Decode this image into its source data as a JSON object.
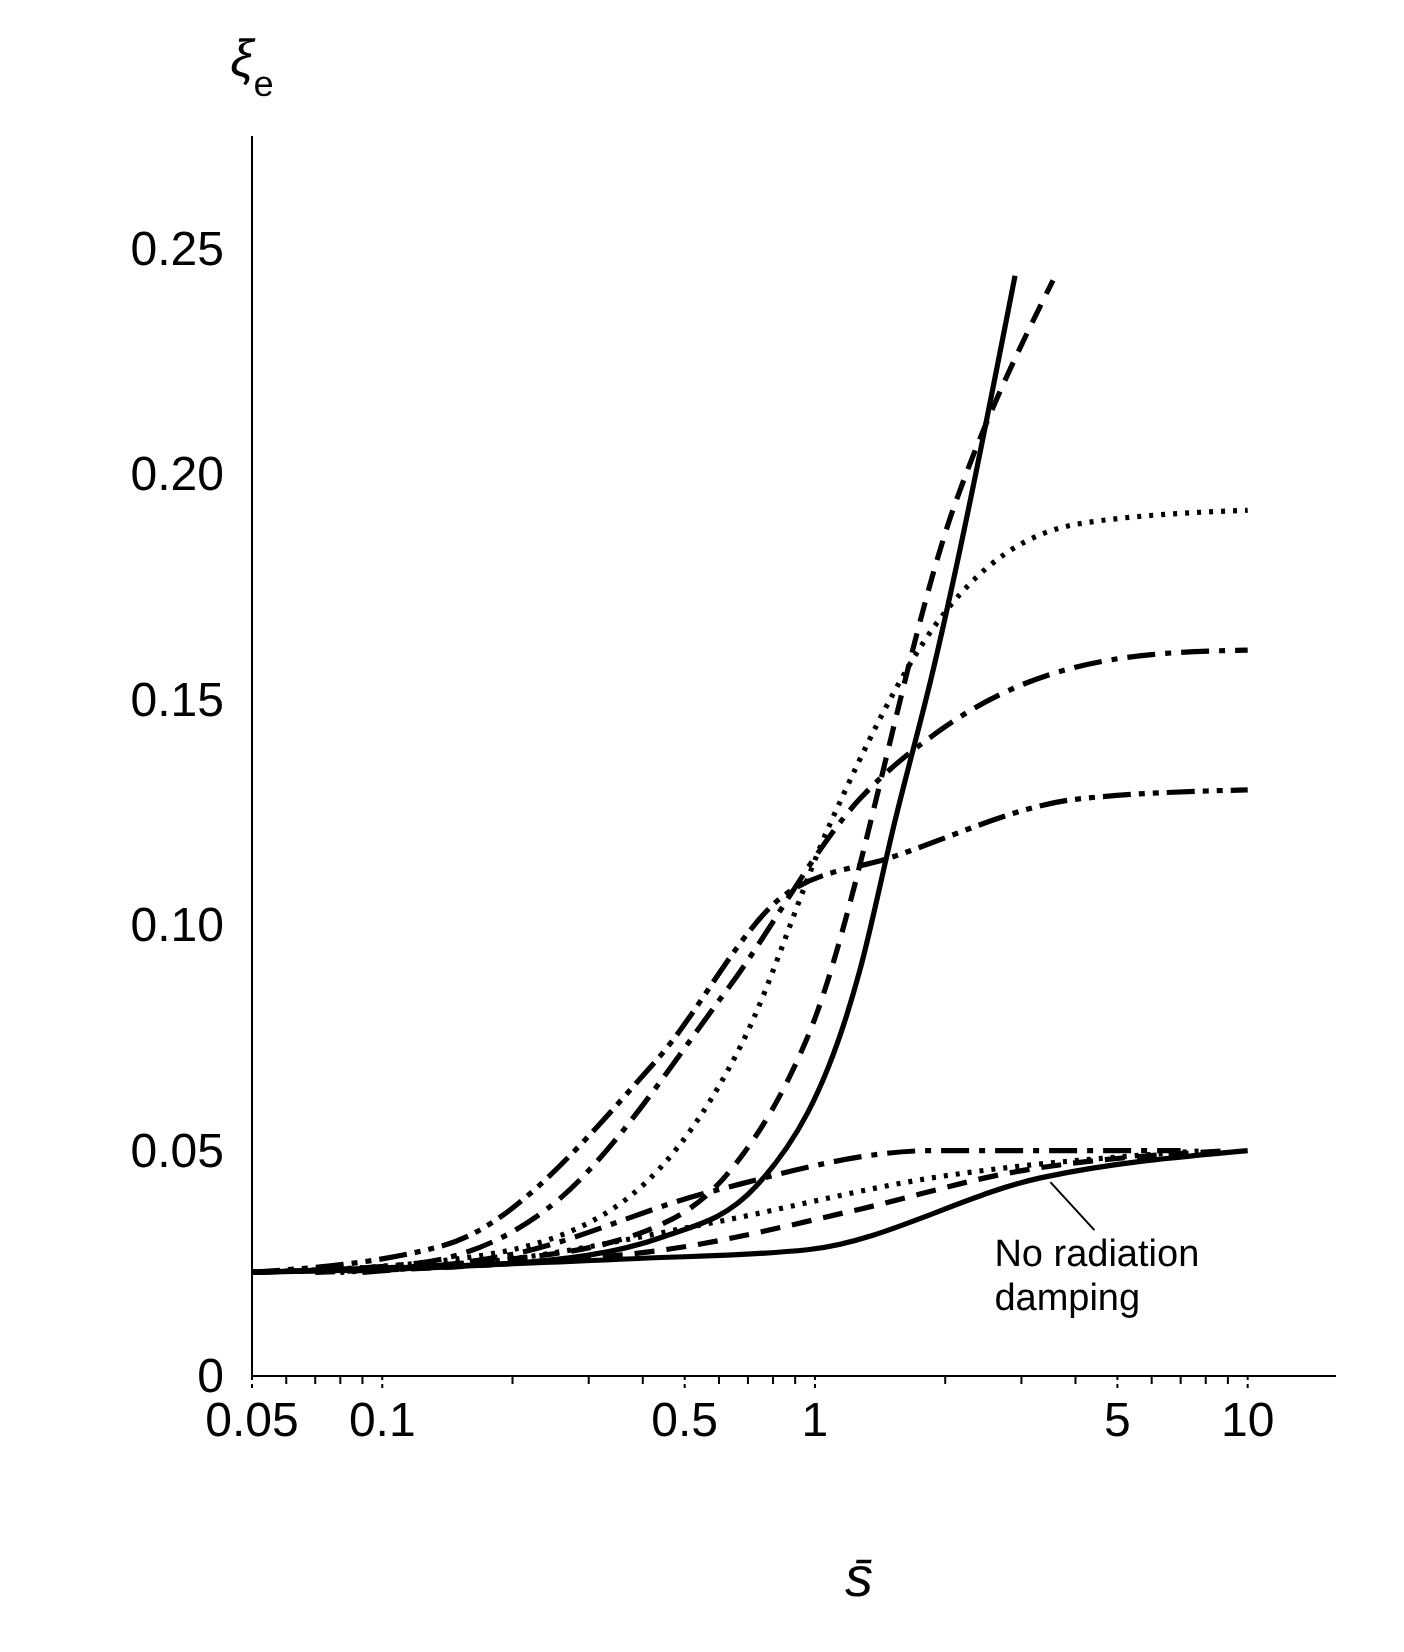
{
  "chart_data": {
    "type": "line",
    "xlabel": "s̄",
    "ylabel": "ξ$_{e}$",
    "log": "x",
    "marker": "none",
    "xlim": [
      0.05,
      16
    ],
    "ylim": [
      0,
      0.275
    ],
    "xticks": [
      0.05,
      {
        "value": 0.06,
        "label": null
      },
      {
        "value": 0.07,
        "label": null
      },
      {
        "value": 0.08,
        "label": null
      },
      {
        "value": 0.09,
        "label": null
      },
      0.1,
      {
        "value": 0.2,
        "label": null
      },
      {
        "value": 0.3,
        "label": null
      },
      {
        "value": 0.4,
        "label": null
      },
      0.5,
      {
        "value": 0.6,
        "label": null
      },
      {
        "value": 0.7,
        "label": null
      },
      {
        "value": 0.8,
        "label": null
      },
      {
        "value": 0.9,
        "label": null
      },
      1,
      {
        "value": 2,
        "label": null
      },
      {
        "value": 3,
        "label": null
      },
      {
        "value": 4,
        "label": null
      },
      5,
      {
        "value": 6,
        "label": null
      },
      {
        "value": 7,
        "label": null
      },
      {
        "value": 8,
        "label": null
      },
      {
        "value": 9,
        "label": null
      },
      10
    ],
    "yticks": [
      0,
      0.05,
      {
        "value": 0.1,
        "label": "0.10"
      },
      0.15,
      {
        "value": 0.2,
        "label": "0.20"
      },
      0.25
    ],
    "series": [
      {
        "color": "#000000",
        "line_style": "solid",
        "x": [
          0.05,
          0.2,
          0.45,
          0.73,
          1.27,
          1.53,
          1.88,
          2.9
        ],
        "values": [
          0.023,
          0.025,
          0.031,
          0.042,
          0.09,
          0.123,
          0.157,
          0.244
        ]
      },
      {
        "color": "#000000",
        "line_style": "dashed",
        "x": [
          0.05,
          0.2,
          0.45,
          0.63,
          0.96,
          2.1,
          3.55
        ],
        "values": [
          0.023,
          0.026,
          0.034,
          0.045,
          0.075,
          0.193,
          0.243
        ]
      },
      {
        "color": "#000000",
        "line_style": "dotted",
        "x": [
          0.05,
          0.15,
          0.34,
          0.68,
          1.09,
          1.88,
          4.08,
          10
        ],
        "values": [
          0.023,
          0.026,
          0.037,
          0.074,
          0.123,
          0.166,
          0.189,
          0.192
        ]
      },
      {
        "color": "#000000",
        "line_style": "dashdot",
        "x": [
          0.05,
          0.12,
          0.24,
          0.63,
          1.27,
          2.0,
          6.0,
          10
        ],
        "values": [
          0.023,
          0.025,
          0.037,
          0.086,
          0.128,
          0.144,
          0.16,
          0.161
        ]
      },
      {
        "color": "#000000",
        "line_style": "dashdotdot",
        "x": [
          0.05,
          0.139,
          0.43,
          0.86,
          1.5,
          4.08,
          10
        ],
        "values": [
          0.023,
          0.029,
          0.07,
          0.107,
          0.115,
          0.128,
          0.13
        ]
      },
      {
        "color": "#000000",
        "line_style": "solid",
        "x": [
          0.05,
          0.38,
          0.96,
          3.34,
          10
        ],
        "values": [
          0.023,
          0.026,
          0.028,
          0.044,
          0.05
        ]
      },
      {
        "color": "#000000",
        "line_style": "dashed",
        "x": [
          0.07,
          0.2,
          0.45,
          1.27,
          2.8,
          9
        ],
        "values": [
          0.023,
          0.025,
          0.028,
          0.037,
          0.045,
          0.05
        ]
      },
      {
        "color": "#000000",
        "line_style": "dotted",
        "x": [
          0.08,
          0.2,
          0.58,
          1.88,
          8
        ],
        "values": [
          0.023,
          0.026,
          0.034,
          0.044,
          0.05
        ]
      },
      {
        "color": "#000000",
        "line_style": "dashdot",
        "x": [
          0.09,
          0.2,
          0.58,
          1.88,
          7
        ],
        "values": [
          0.023,
          0.027,
          0.041,
          0.05,
          0.05
        ]
      }
    ],
    "annotations": [
      {
        "text": "No radiation damping",
        "x": 3.5,
        "y": 0.043
      }
    ]
  }
}
